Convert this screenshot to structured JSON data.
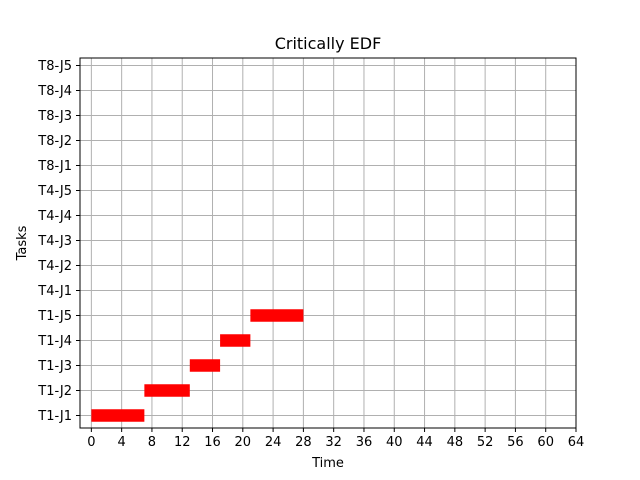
{
  "chart_data": {
    "type": "bar",
    "subtype": "gantt",
    "title": "Critically EDF",
    "xlabel": "Time",
    "ylabel": "Tasks",
    "xlim": [
      -1.5,
      64
    ],
    "xticks": [
      0,
      4,
      8,
      12,
      16,
      20,
      24,
      28,
      32,
      36,
      40,
      44,
      48,
      52,
      56,
      60,
      64
    ],
    "categories": [
      "T1-J1",
      "T1-J2",
      "T1-J3",
      "T1-J4",
      "T1-J5",
      "T4-J1",
      "T4-J2",
      "T4-J3",
      "T4-J4",
      "T4-J5",
      "T8-J1",
      "T8-J2",
      "T8-J3",
      "T8-J4",
      "T8-J5"
    ],
    "grid": true,
    "bar_color": "#ff0000",
    "bars": [
      {
        "task": "T1-J1",
        "start": 0,
        "end": 7
      },
      {
        "task": "T1-J2",
        "start": 7,
        "end": 13
      },
      {
        "task": "T1-J3",
        "start": 13,
        "end": 17
      },
      {
        "task": "T1-J4",
        "start": 17,
        "end": 21
      },
      {
        "task": "T1-J5",
        "start": 21,
        "end": 28
      }
    ]
  }
}
